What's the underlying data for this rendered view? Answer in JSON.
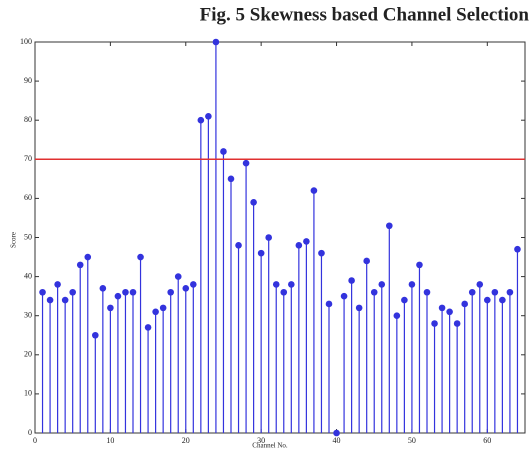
{
  "chart_data": {
    "type": "stem",
    "title": "Fig. 5 Skewness based Channel Selection",
    "xlabel": "Channel No.",
    "ylabel": "Score",
    "x": [
      1,
      2,
      3,
      4,
      5,
      6,
      7,
      8,
      9,
      10,
      11,
      12,
      13,
      14,
      15,
      16,
      17,
      18,
      19,
      20,
      21,
      22,
      23,
      24,
      25,
      26,
      27,
      28,
      29,
      30,
      31,
      32,
      33,
      34,
      35,
      36,
      37,
      38,
      39,
      40,
      41,
      42,
      43,
      44,
      45,
      46,
      47,
      48,
      49,
      50,
      51,
      52,
      53,
      54,
      55,
      56,
      57,
      58,
      59,
      60,
      61,
      62,
      63,
      64
    ],
    "series": [
      {
        "name": "Score",
        "color": "#3333dd",
        "values": [
          36,
          34,
          38,
          34,
          36,
          43,
          45,
          25,
          37,
          32,
          35,
          36,
          36,
          45,
          27,
          31,
          32,
          36,
          40,
          37,
          38,
          80,
          81,
          100,
          72,
          65,
          48,
          69,
          59,
          46,
          50,
          38,
          36,
          38,
          48,
          49,
          62,
          46,
          33,
          0,
          35,
          39,
          32,
          44,
          36,
          38,
          53,
          30,
          34,
          38,
          43,
          36,
          28,
          32,
          31,
          28,
          33,
          36,
          38,
          34,
          36,
          34,
          36,
          47
        ]
      }
    ],
    "threshold": 70,
    "threshold_color": "#e03030",
    "xlim": [
      0,
      65
    ],
    "ylim": [
      0,
      100
    ],
    "xticks": [
      0,
      10,
      20,
      30,
      40,
      50,
      60
    ],
    "yticks": [
      0,
      10,
      20,
      30,
      40,
      50,
      60,
      70,
      80,
      90,
      100
    ]
  }
}
